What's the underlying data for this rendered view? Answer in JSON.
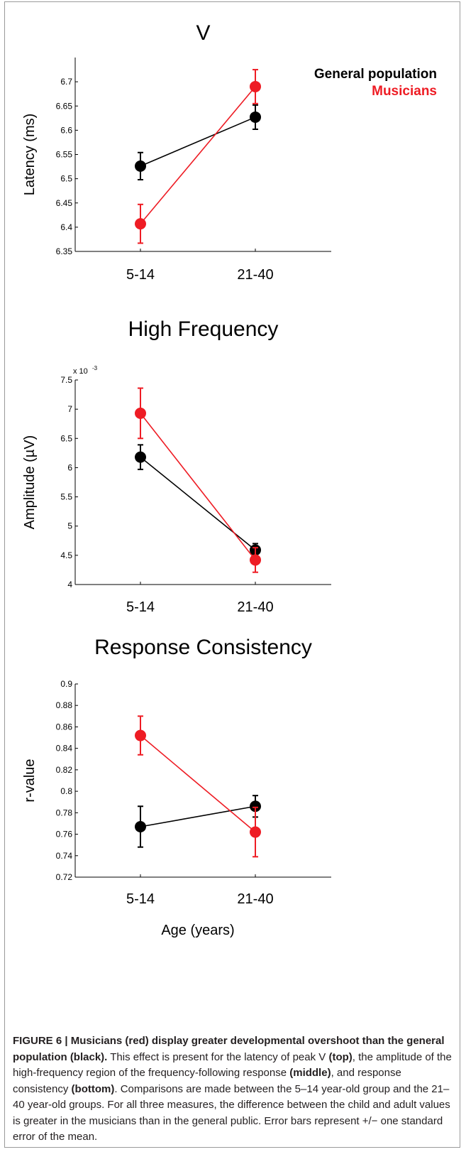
{
  "legend": {
    "items": [
      {
        "label": "General population",
        "color": "#000000"
      },
      {
        "label": "Musicians",
        "color": "#ee1c24"
      }
    ]
  },
  "chart_data": [
    {
      "type": "line",
      "title": "V",
      "ylabel": "Latency (ms)",
      "xlabel": "",
      "categories": [
        "5-14",
        "21-40"
      ],
      "ylim": [
        6.35,
        6.75
      ],
      "yticks": [
        "6.35",
        "6.4",
        "6.45",
        "6.5",
        "6.55",
        "6.6",
        "6.65",
        "6.7"
      ],
      "tick_values": [
        6.35,
        6.4,
        6.45,
        6.5,
        6.55,
        6.6,
        6.65,
        6.7
      ],
      "exponent_label": "",
      "series": [
        {
          "name": "General population",
          "color": "#000000",
          "values": [
            6.526,
            6.627
          ],
          "errors": [
            0.028,
            0.025
          ]
        },
        {
          "name": "Musicians",
          "color": "#ee1c24",
          "values": [
            6.407,
            6.69
          ],
          "errors": [
            0.04,
            0.035
          ]
        }
      ]
    },
    {
      "type": "line",
      "title": "High Frequency",
      "ylabel": "Amplitude (µV)",
      "xlabel": "",
      "categories": [
        "5-14",
        "21-40"
      ],
      "ylim": [
        4,
        7.5
      ],
      "yticks": [
        "4",
        "4.5",
        "5",
        "5.5",
        "6",
        "6.5",
        "7",
        "7.5"
      ],
      "tick_values": [
        4,
        4.5,
        5,
        5.5,
        6,
        6.5,
        7,
        7.5
      ],
      "exponent_label": "x 10",
      "exponent_power": "-3",
      "series": [
        {
          "name": "General population",
          "color": "#000000",
          "values": [
            6.18,
            4.59
          ],
          "errors": [
            0.21,
            0.11
          ]
        },
        {
          "name": "Musicians",
          "color": "#ee1c24",
          "values": [
            6.93,
            4.42
          ],
          "errors": [
            0.43,
            0.21
          ]
        }
      ]
    },
    {
      "type": "line",
      "title": "Response Consistency",
      "ylabel": "r-value",
      "xlabel": "Age (years)",
      "categories": [
        "5-14",
        "21-40"
      ],
      "ylim": [
        0.72,
        0.9
      ],
      "yticks": [
        "0.72",
        "0.74",
        "0.76",
        "0.78",
        "0.8",
        "0.82",
        "0.84",
        "0.86",
        "0.88",
        "0.9"
      ],
      "tick_values": [
        0.72,
        0.74,
        0.76,
        0.78,
        0.8,
        0.82,
        0.84,
        0.86,
        0.88,
        0.9
      ],
      "exponent_label": "",
      "series": [
        {
          "name": "General population",
          "color": "#000000",
          "values": [
            0.767,
            0.786
          ],
          "errors": [
            0.019,
            0.01
          ]
        },
        {
          "name": "Musicians",
          "color": "#ee1c24",
          "values": [
            0.852,
            0.762
          ],
          "errors": [
            0.018,
            0.023
          ]
        }
      ]
    }
  ],
  "caption": {
    "label": "FIGURE 6 | Musicians (red) display greater developmental overshoot than the general population (black).",
    "t1": " This effect is present for the latency of peak V ",
    "b1": "(top)",
    "t2": ", the amplitude of the high-frequency region of the frequency-following response ",
    "b2": "(middle)",
    "t3": ", and response consistency ",
    "b3": "(bottom)",
    "t4": ". Comparisons are made between the 5–14 year-old group and the 21–40 year-old groups. For all three measures, the difference between the child and adult values is greater in the musicians than in the general public. Error bars represent +/− one standard error of the mean."
  }
}
